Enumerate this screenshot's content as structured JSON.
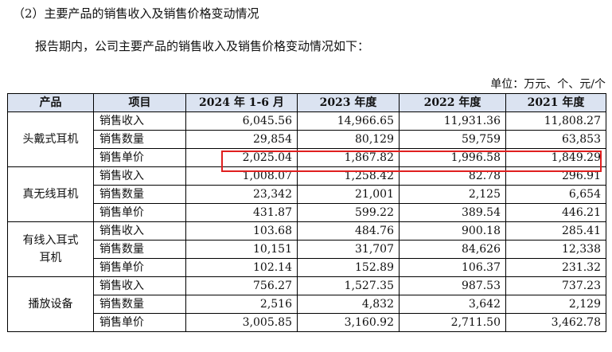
{
  "heading": "（2）主要产品的销售收入及销售价格变动情况",
  "intro": "报告期内，公司主要产品的销售收入及销售价格变动情况如下：",
  "unit": "单位：万元、个、元/个",
  "table": {
    "headers": [
      "产品",
      "项目",
      "2024 年 1-6 月",
      "2023 年度",
      "2022 年度",
      "2021 年度"
    ],
    "groups": [
      {
        "product": "头戴式耳机",
        "rows": [
          {
            "item": "销售收入",
            "values": [
              "6,045.56",
              "14,966.65",
              "11,931.36",
              "11,808.27"
            ]
          },
          {
            "item": "销售数量",
            "values": [
              "29,854",
              "80,129",
              "59,759",
              "63,853"
            ]
          },
          {
            "item": "销售单价",
            "values": [
              "2,025.04",
              "1,867.82",
              "1,996.58",
              "1,849.29"
            ]
          }
        ]
      },
      {
        "product": "真无线耳机",
        "rows": [
          {
            "item": "销售收入",
            "values": [
              "1,008.07",
              "1,258.42",
              "82.78",
              "296.91"
            ]
          },
          {
            "item": "销售数量",
            "values": [
              "23,342",
              "21,001",
              "2,125",
              "6,654"
            ]
          },
          {
            "item": "销售单价",
            "values": [
              "431.87",
              "599.22",
              "389.54",
              "446.21"
            ]
          }
        ]
      },
      {
        "product": "有线入耳式耳机",
        "rows": [
          {
            "item": "销售收入",
            "values": [
              "103.68",
              "484.76",
              "900.18",
              "285.41"
            ]
          },
          {
            "item": "销售数量",
            "values": [
              "10,151",
              "31,707",
              "84,626",
              "12,338"
            ]
          },
          {
            "item": "销售单价",
            "values": [
              "102.14",
              "152.89",
              "106.37",
              "231.32"
            ]
          }
        ]
      },
      {
        "product": "播放设备",
        "rows": [
          {
            "item": "销售收入",
            "values": [
              "756.27",
              "1,527.35",
              "987.53",
              "737.23"
            ]
          },
          {
            "item": "销售数量",
            "values": [
              "2,516",
              "4,832",
              "3,642",
              "2,129"
            ]
          },
          {
            "item": "销售单价",
            "values": [
              "3,005.85",
              "3,160.92",
              "2,711.50",
              "3,462.78"
            ]
          }
        ]
      }
    ]
  },
  "highlight_color": "#e01f1f",
  "header_bg": "#dbe3f1"
}
